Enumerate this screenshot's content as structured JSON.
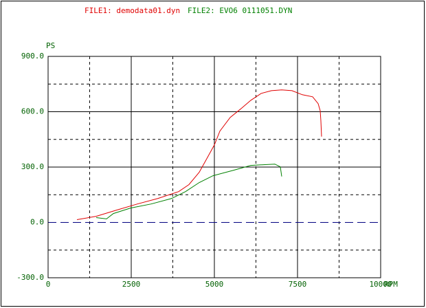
{
  "chart_data": {
    "type": "line",
    "xlabel": "RPM",
    "ylabel": "PS",
    "series": [
      {
        "name": "FILE1: demodata01.dyn",
        "color": "#e00000",
        "x": [
          868,
          1446,
          2066,
          2686,
          3306,
          3925,
          4236,
          4545,
          4752,
          5000,
          5165,
          5475,
          5785,
          6095,
          6405,
          6715,
          7025,
          7335,
          7645,
          7954,
          8120,
          8182,
          8202,
          8223
        ],
        "values": [
          15,
          33,
          67,
          100,
          130,
          167,
          205,
          272,
          339,
          420,
          495,
          569,
          614,
          662,
          699,
          714,
          718,
          714,
          692,
          681,
          644,
          606,
          550,
          465
        ]
      },
      {
        "name": "FILE2: EVO6  0111051.DYN",
        "color": "#008000",
        "x": [
          1446,
          1756,
          1963,
          2479,
          3099,
          3719,
          4132,
          4545,
          4959,
          5579,
          6095,
          6405,
          6818,
          6983,
          7025
        ],
        "values": [
          26,
          19,
          48,
          78,
          100,
          130,
          167,
          216,
          253,
          283,
          309,
          312,
          316,
          301,
          249
        ]
      }
    ],
    "xlim": [
      0,
      10000
    ],
    "ylim": [
      -300,
      900
    ],
    "xticks": [
      0,
      2500,
      5000,
      7500,
      10000
    ],
    "yticks": [
      {
        "value": -300,
        "label": "-300.0"
      },
      {
        "value": 0,
        "label": "0.0"
      },
      {
        "value": 300,
        "label": "300.0"
      },
      {
        "value": 600,
        "label": "600.0"
      },
      {
        "value": 900,
        "label": "900.0"
      }
    ],
    "x_minor_grid": [
      1250,
      3750,
      6250,
      8750
    ],
    "y_minor_grid": [
      -150,
      150,
      450,
      750
    ],
    "grid": true,
    "zero_line_color": "#000080"
  }
}
